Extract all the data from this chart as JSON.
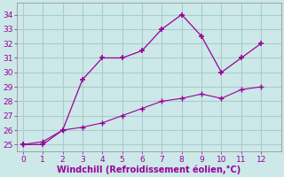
{
  "xlabel": "Windchill (Refroidissement éolien,°C)",
  "line1_x": [
    0,
    1,
    2,
    3,
    4,
    5,
    6,
    7,
    8,
    9,
    10,
    11,
    12
  ],
  "line1_y": [
    25,
    25,
    26,
    29.5,
    31,
    31,
    31.5,
    33,
    34,
    32.5,
    30,
    31,
    32
  ],
  "line2_x": [
    0,
    1,
    2,
    3,
    4,
    5,
    6,
    7,
    8,
    9,
    10,
    11,
    12
  ],
  "line2_y": [
    25,
    25.2,
    26,
    26.2,
    26.5,
    27,
    27.5,
    28,
    28.2,
    28.5,
    28.2,
    28.8,
    29
  ],
  "line_color": "#990099",
  "bg_color": "#cce8e8",
  "grid_color": "#aacccc",
  "xlim": [
    -0.3,
    13
  ],
  "ylim": [
    24.5,
    34.8
  ],
  "xticks": [
    0,
    1,
    2,
    3,
    4,
    5,
    6,
    7,
    8,
    9,
    10,
    11,
    12
  ],
  "yticks": [
    25,
    26,
    27,
    28,
    29,
    30,
    31,
    32,
    33,
    34
  ],
  "tick_color": "#990099",
  "tick_fontsize": 6.5,
  "xlabel_fontsize": 7
}
